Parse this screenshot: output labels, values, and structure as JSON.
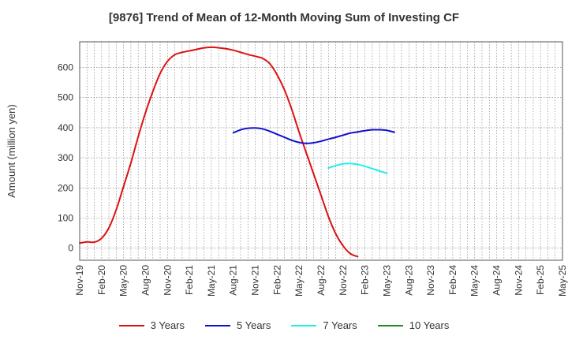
{
  "chart_data": {
    "type": "line",
    "title": "[9876]  Trend of Mean of 12-Month Moving Sum of Investing CF",
    "xlabel": "",
    "ylabel": "Amount (million yen)",
    "ylim": [
      -40,
      685
    ],
    "yticks": [
      0,
      100,
      200,
      300,
      400,
      500,
      600
    ],
    "grid": true,
    "legend_position": "bottom",
    "x_tick_labels": [
      "Nov-19",
      "Feb-20",
      "May-20",
      "Aug-20",
      "Nov-20",
      "Feb-21",
      "May-21",
      "Aug-21",
      "Nov-21",
      "Feb-22",
      "May-22",
      "Aug-22",
      "Nov-22",
      "Feb-23",
      "May-23",
      "Aug-23",
      "Nov-23",
      "Feb-24",
      "May-24",
      "Aug-24",
      "Nov-24",
      "Feb-25",
      "May-25"
    ],
    "series": [
      {
        "name": "3 Years",
        "color": "#dd1111",
        "points": [
          [
            0,
            17
          ],
          [
            1,
            21
          ],
          [
            2,
            20
          ],
          [
            3,
            33
          ],
          [
            4,
            68
          ],
          [
            5,
            128
          ],
          [
            6,
            205
          ],
          [
            7,
            283
          ],
          [
            8,
            370
          ],
          [
            9,
            450
          ],
          [
            10,
            520
          ],
          [
            11,
            580
          ],
          [
            12,
            620
          ],
          [
            13,
            642
          ],
          [
            14,
            650
          ],
          [
            15,
            655
          ],
          [
            16,
            660
          ],
          [
            17,
            665
          ],
          [
            18,
            667
          ],
          [
            19,
            665
          ],
          [
            20,
            662
          ],
          [
            21,
            657
          ],
          [
            22,
            650
          ],
          [
            23,
            643
          ],
          [
            24,
            637
          ],
          [
            25,
            630
          ],
          [
            26,
            612
          ],
          [
            27,
            575
          ],
          [
            28,
            525
          ],
          [
            29,
            460
          ],
          [
            30,
            385
          ],
          [
            31,
            315
          ],
          [
            32,
            245
          ],
          [
            33,
            175
          ],
          [
            34,
            105
          ],
          [
            35,
            48
          ],
          [
            36,
            8
          ],
          [
            37,
            -18
          ],
          [
            38,
            -28
          ]
        ]
      },
      {
        "name": "5 Years",
        "color": "#1111cc",
        "points": [
          [
            21,
            383
          ],
          [
            22,
            393
          ],
          [
            23,
            398
          ],
          [
            24,
            399
          ],
          [
            25,
            396
          ],
          [
            26,
            388
          ],
          [
            27,
            378
          ],
          [
            28,
            368
          ],
          [
            29,
            358
          ],
          [
            30,
            351
          ],
          [
            31,
            348
          ],
          [
            32,
            350
          ],
          [
            33,
            355
          ],
          [
            34,
            362
          ],
          [
            35,
            368
          ],
          [
            36,
            375
          ],
          [
            37,
            382
          ],
          [
            38,
            386
          ],
          [
            39,
            390
          ],
          [
            40,
            393
          ],
          [
            41,
            393
          ],
          [
            42,
            391
          ],
          [
            43,
            385
          ]
        ]
      },
      {
        "name": "7 Years",
        "color": "#22eeee",
        "points": [
          [
            34,
            266
          ],
          [
            35,
            274
          ],
          [
            36,
            280
          ],
          [
            37,
            281
          ],
          [
            38,
            278
          ],
          [
            39,
            272
          ],
          [
            40,
            264
          ],
          [
            41,
            256
          ],
          [
            42,
            249
          ]
        ]
      },
      {
        "name": "10 Years",
        "color": "#228b22",
        "points": []
      }
    ]
  }
}
